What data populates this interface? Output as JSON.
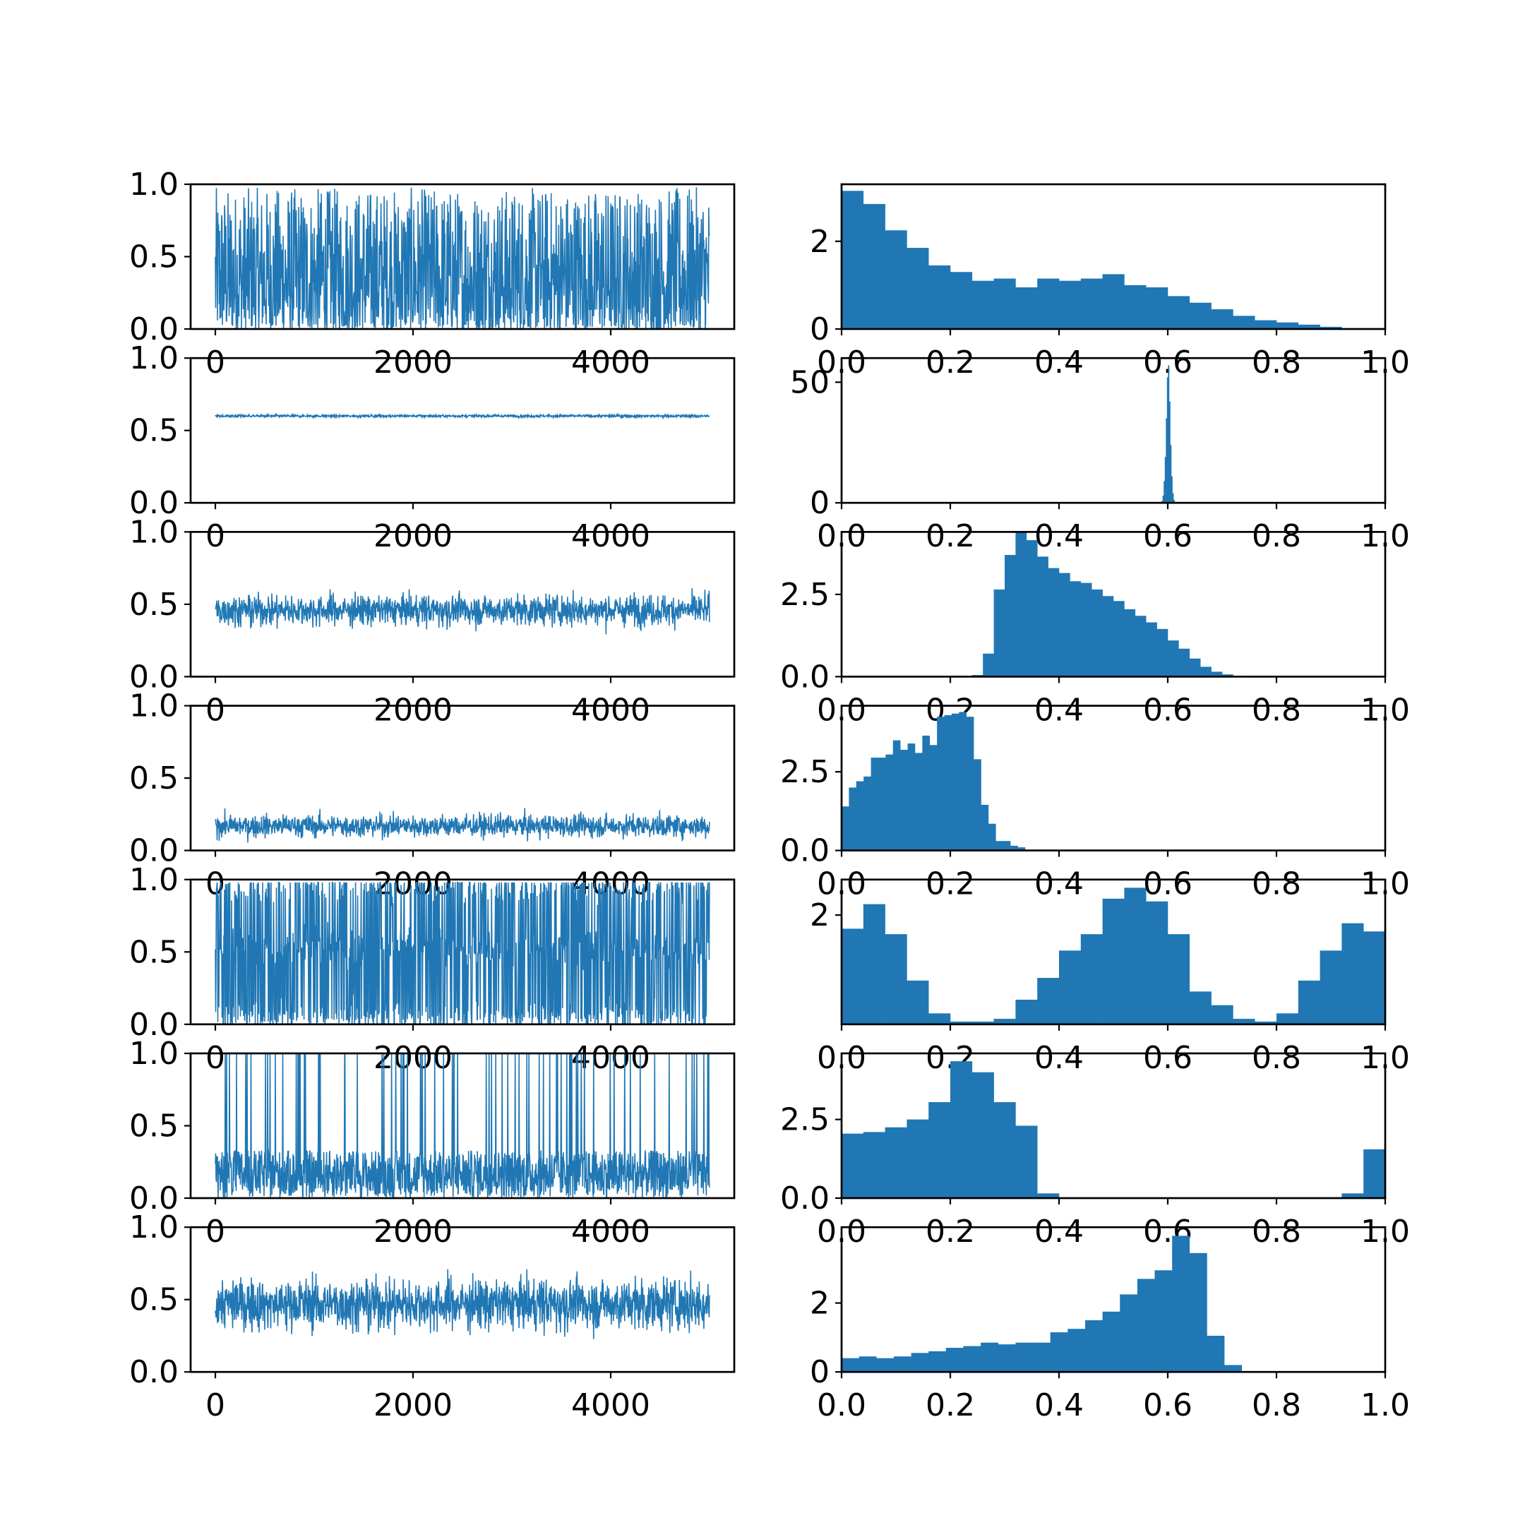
{
  "chart_data": {
    "type": "trace-and-histogram grid",
    "rows": 7,
    "color": "#2077b4",
    "trace": {
      "type": "line",
      "n_samples": 5000,
      "xlim": [
        -250,
        5250
      ],
      "ylim": [
        0.0,
        1.0
      ],
      "xticks": [
        0,
        2000,
        4000
      ],
      "xtick_labels": [
        "0",
        "2000",
        "4000"
      ],
      "yticks": [
        0.0,
        0.5,
        1.0
      ],
      "ytick_labels": [
        "0.0",
        "0.5",
        "1.0"
      ],
      "series": [
        {
          "kind": "uniform",
          "min": 0.0,
          "max": 0.98,
          "mean": 0.28
        },
        {
          "kind": "band",
          "center": 0.6,
          "halfwidth": 0.015
        },
        {
          "kind": "band",
          "center": 0.46,
          "halfwidth": 0.18,
          "min": 0.24,
          "max": 0.82
        },
        {
          "kind": "band",
          "center": 0.17,
          "halfwidth": 0.13,
          "min": 0.0,
          "max": 0.36
        },
        {
          "kind": "multimodal",
          "min": 0.0,
          "max": 0.98
        },
        {
          "kind": "switching",
          "base_min": 0.0,
          "base_max": 0.33,
          "jump_max": 1.0
        },
        {
          "kind": "band",
          "center": 0.47,
          "halfwidth": 0.3,
          "min": 0.0,
          "max": 0.8
        }
      ]
    },
    "histogram": {
      "type": "bar",
      "xlim": [
        0.0,
        1.0
      ],
      "xticks": [
        0.0,
        0.2,
        0.4,
        0.6,
        0.8,
        1.0
      ],
      "xtick_labels": [
        "0.0",
        "0.2",
        "0.4",
        "0.6",
        "0.8",
        "1.0"
      ],
      "panels": [
        {
          "ylim": [
            0,
            3.3
          ],
          "yticks": [
            0,
            2
          ],
          "ytick_labels": [
            "0",
            "2"
          ],
          "bins": [
            0.0,
            0.04,
            0.08,
            0.12,
            0.16,
            0.2,
            0.24,
            0.28,
            0.32,
            0.36,
            0.4,
            0.44,
            0.48,
            0.52,
            0.56,
            0.6,
            0.64,
            0.68,
            0.72,
            0.76,
            0.8,
            0.84,
            0.88,
            0.92,
            0.96,
            1.0
          ],
          "values": [
            3.15,
            2.85,
            2.25,
            1.85,
            1.45,
            1.3,
            1.1,
            1.15,
            0.95,
            1.15,
            1.1,
            1.15,
            1.25,
            1.0,
            0.95,
            0.75,
            0.6,
            0.45,
            0.3,
            0.2,
            0.15,
            0.1,
            0.05,
            0.0,
            0.0
          ]
        },
        {
          "ylim": [
            0,
            60
          ],
          "yticks": [
            0,
            50
          ],
          "ytick_labels": [
            "0",
            "50"
          ],
          "bins": [
            0.5885,
            0.5905,
            0.5925,
            0.5945,
            0.5965,
            0.5985,
            0.6005,
            0.6025,
            0.6045,
            0.6065,
            0.6085,
            0.6105,
            0.6125,
            0.6145
          ],
          "values": [
            0.8,
            3,
            9,
            19,
            35,
            52,
            57,
            42,
            24,
            11,
            4,
            1.2,
            0.3
          ]
        },
        {
          "ylim": [
            0,
            4.4
          ],
          "yticks": [
            0.0,
            2.5
          ],
          "ytick_labels": [
            "0.0",
            "2.5"
          ],
          "bins": [
            0.22,
            0.24,
            0.26,
            0.28,
            0.3,
            0.32,
            0.34,
            0.36,
            0.38,
            0.4,
            0.42,
            0.44,
            0.46,
            0.48,
            0.5,
            0.52,
            0.54,
            0.56,
            0.58,
            0.6,
            0.62,
            0.64,
            0.66,
            0.68,
            0.7,
            0.72,
            0.74,
            0.76,
            0.78,
            0.8,
            0.82
          ],
          "values": [
            0.02,
            0.05,
            0.7,
            2.65,
            3.7,
            4.4,
            4.15,
            3.65,
            3.3,
            3.15,
            2.9,
            2.85,
            2.65,
            2.45,
            2.3,
            2.05,
            1.85,
            1.65,
            1.45,
            1.1,
            0.85,
            0.55,
            0.3,
            0.15,
            0.07,
            0.03,
            0.01,
            0.01,
            0.005,
            0.005
          ]
        },
        {
          "ylim": [
            0,
            4.6
          ],
          "yticks": [
            0.0,
            2.5
          ],
          "ytick_labels": [
            "0.0",
            "2.5"
          ],
          "bins": [
            0.0,
            0.0135,
            0.027,
            0.0405,
            0.054,
            0.0675,
            0.081,
            0.0945,
            0.108,
            0.1215,
            0.135,
            0.1485,
            0.162,
            0.1755,
            0.189,
            0.2025,
            0.216,
            0.2295,
            0.243,
            0.2565,
            0.27,
            0.2835,
            0.297,
            0.3105,
            0.324,
            0.3375,
            0.351,
            0.3645
          ],
          "values": [
            1.4,
            2.0,
            2.2,
            2.35,
            2.95,
            2.95,
            3.05,
            3.5,
            3.2,
            3.4,
            3.1,
            3.65,
            3.35,
            4.25,
            4.3,
            4.35,
            4.4,
            4.25,
            2.9,
            1.45,
            0.85,
            0.3,
            0.3,
            0.15,
            0.1,
            0.02,
            0.01
          ]
        },
        {
          "ylim": [
            0,
            2.65
          ],
          "yticks": [
            2
          ],
          "ytick_labels": [
            "2"
          ],
          "bins": [
            0.0,
            0.04,
            0.08,
            0.12,
            0.16,
            0.2,
            0.24,
            0.28,
            0.32,
            0.36,
            0.4,
            0.44,
            0.48,
            0.52,
            0.56,
            0.6,
            0.64,
            0.68,
            0.72,
            0.76,
            0.8,
            0.84,
            0.88,
            0.92,
            0.96,
            1.0
          ],
          "values": [
            1.75,
            2.2,
            1.65,
            0.8,
            0.2,
            0.05,
            0.05,
            0.1,
            0.45,
            0.85,
            1.35,
            1.65,
            2.3,
            2.5,
            2.25,
            1.65,
            0.6,
            0.35,
            0.1,
            0.05,
            0.2,
            0.8,
            1.35,
            1.85,
            1.7
          ]
        },
        {
          "ylim": [
            0,
            4.6
          ],
          "yticks": [
            0.0,
            2.5
          ],
          "ytick_labels": [
            "0.0",
            "2.5"
          ],
          "bins": [
            0.0,
            0.04,
            0.08,
            0.12,
            0.16,
            0.2,
            0.24,
            0.28,
            0.32,
            0.36,
            0.4,
            0.44,
            0.48,
            0.52,
            0.56,
            0.6,
            0.64,
            0.68,
            0.72,
            0.76,
            0.8,
            0.84,
            0.88,
            0.92,
            0.96,
            1.0
          ],
          "values": [
            2.05,
            2.1,
            2.25,
            2.5,
            3.05,
            4.35,
            4.0,
            3.05,
            2.3,
            0.15,
            0.0,
            0.0,
            0.0,
            0.0,
            0.0,
            0.0,
            0.0,
            0.0,
            0.0,
            0.0,
            0.0,
            0.0,
            0.0,
            0.15,
            1.55
          ]
        },
        {
          "ylim": [
            0,
            4.2
          ],
          "yticks": [
            0,
            2
          ],
          "ytick_labels": [
            "0",
            "2"
          ],
          "bins": [
            0.0,
            0.032,
            0.064,
            0.096,
            0.128,
            0.16,
            0.192,
            0.224,
            0.256,
            0.288,
            0.32,
            0.352,
            0.384,
            0.416,
            0.448,
            0.48,
            0.512,
            0.544,
            0.576,
            0.608,
            0.64,
            0.672,
            0.704,
            0.736,
            0.768,
            0.8
          ],
          "values": [
            0.4,
            0.45,
            0.4,
            0.45,
            0.55,
            0.6,
            0.7,
            0.75,
            0.85,
            0.8,
            0.85,
            0.85,
            1.15,
            1.25,
            1.5,
            1.75,
            2.25,
            2.7,
            2.95,
            3.95,
            3.45,
            1.05,
            0.2,
            0.0,
            0.0
          ]
        }
      ]
    }
  }
}
